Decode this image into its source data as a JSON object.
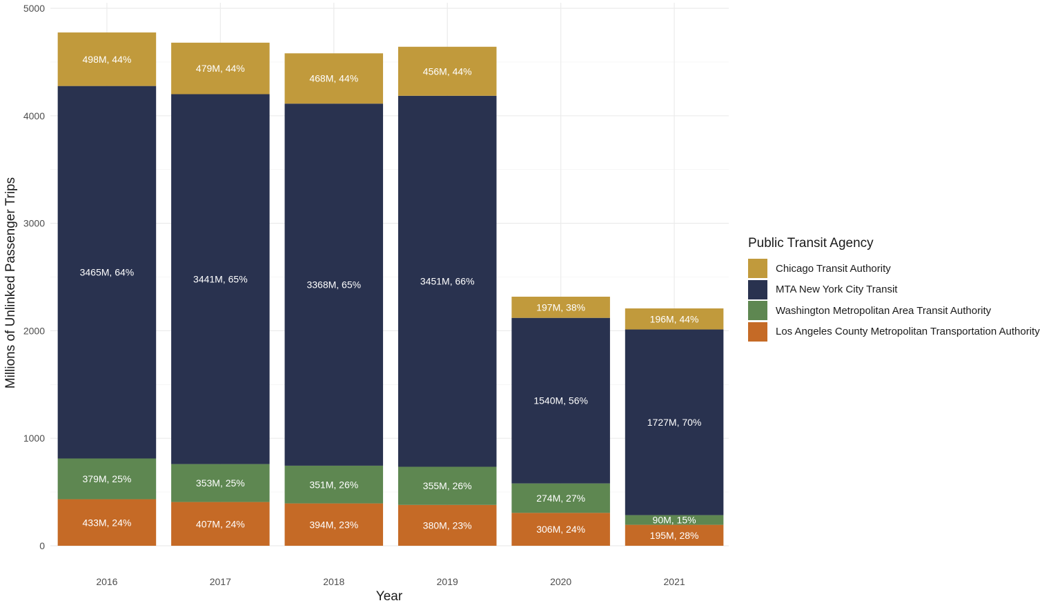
{
  "chart_data": {
    "type": "bar",
    "stacked": true,
    "xlabel": "Year",
    "ylabel": "Millions of Unlinked Passenger Trips",
    "ylim": [
      0,
      5000
    ],
    "yticks": [
      "0",
      "1000",
      "2000",
      "3000",
      "4000",
      "5000"
    ],
    "categories": [
      "2016",
      "2017",
      "2018",
      "2019",
      "2020",
      "2021"
    ],
    "grid": true,
    "legend_position": "right",
    "legend_title": "Public Transit Agency",
    "series": [
      {
        "name": "Los Angeles County Metropolitan Transportation Authority",
        "color": "#c56a26",
        "values": [
          433,
          407,
          394,
          380,
          306,
          195
        ],
        "labels": [
          "433M, 24%",
          "407M, 24%",
          "394M, 23%",
          "380M, 23%",
          "306M, 24%",
          "195M, 28%"
        ]
      },
      {
        "name": "Washington Metropolitan Area Transit Authority",
        "color": "#5e8751",
        "values": [
          379,
          353,
          351,
          355,
          274,
          90
        ],
        "labels": [
          "379M, 25%",
          "353M, 25%",
          "351M, 26%",
          "355M, 26%",
          "274M, 27%",
          "90M, 15%"
        ]
      },
      {
        "name": "MTA New York City Transit",
        "color": "#29324f",
        "values": [
          3465,
          3441,
          3368,
          3451,
          1540,
          1727
        ],
        "labels": [
          "3465M, 64%",
          "3441M, 65%",
          "3368M, 65%",
          "3451M, 66%",
          "1540M, 56%",
          "1727M, 70%"
        ]
      },
      {
        "name": "Chicago Transit Authority",
        "color": "#c19a3c",
        "values": [
          498,
          479,
          468,
          456,
          197,
          196
        ],
        "labels": [
          "498M, 44%",
          "479M, 44%",
          "468M, 44%",
          "456M, 44%",
          "197M, 38%",
          "196M, 44%"
        ]
      }
    ],
    "legend_order": [
      "Chicago Transit Authority",
      "MTA New York City Transit",
      "Washington Metropolitan Area Transit Authority",
      "Los Angeles County Metropolitan Transportation Authority"
    ]
  }
}
